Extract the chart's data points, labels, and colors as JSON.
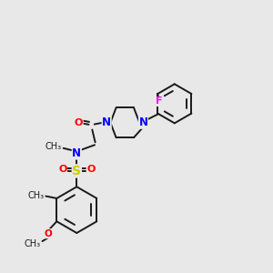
{
  "bg_color": "#e8e8e8",
  "bond_color": "#1a1a1a",
  "N_color": "#0000ff",
  "O_color": "#ff0000",
  "S_color": "#cccc00",
  "F_color": "#ff00ff",
  "figsize": [
    3.0,
    3.0
  ],
  "dpi": 100,
  "xlim": [
    0,
    10
  ],
  "ylim": [
    0,
    10
  ]
}
